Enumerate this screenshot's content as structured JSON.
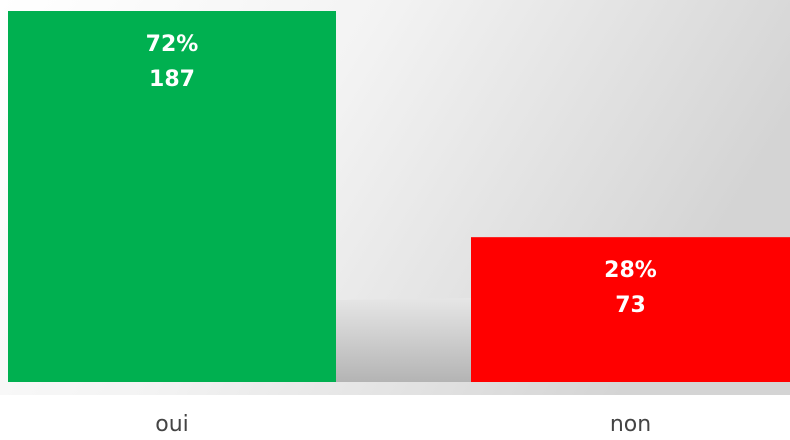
{
  "chart_data": {
    "type": "bar",
    "categories": [
      "oui",
      "non"
    ],
    "values": [
      187,
      73
    ],
    "percent_labels": [
      "72%",
      "28%"
    ],
    "colors": [
      "#00b050",
      "#ff0000"
    ]
  }
}
